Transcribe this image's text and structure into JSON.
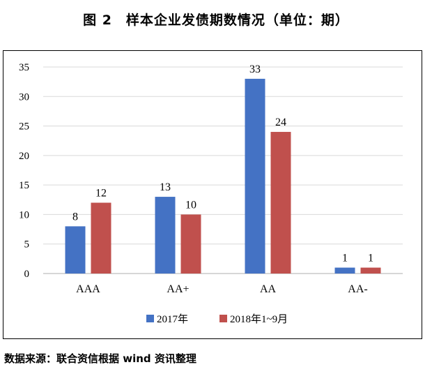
{
  "title": "图 2　样本企业发债期数情况（单位：期）",
  "source": "数据来源：联合资信根据 wind 资讯整理",
  "colors": {
    "series1": "#4472c4",
    "series2": "#c0504d",
    "grid": "#d9d9d9",
    "axis": "#bfbfbf"
  },
  "chart_data": {
    "type": "bar",
    "categories": [
      "AAA",
      "AA+",
      "AA",
      "AA-"
    ],
    "series": [
      {
        "name": "2017年",
        "values": [
          8,
          13,
          33,
          1
        ]
      },
      {
        "name": "2018年1~9月",
        "values": [
          12,
          10,
          24,
          1
        ]
      }
    ],
    "ylim": [
      0,
      35
    ],
    "yticks": [
      0,
      5,
      10,
      15,
      20,
      25,
      30,
      35
    ],
    "grid": true,
    "legend": "bottom-center",
    "xlabel": "",
    "ylabel": ""
  }
}
